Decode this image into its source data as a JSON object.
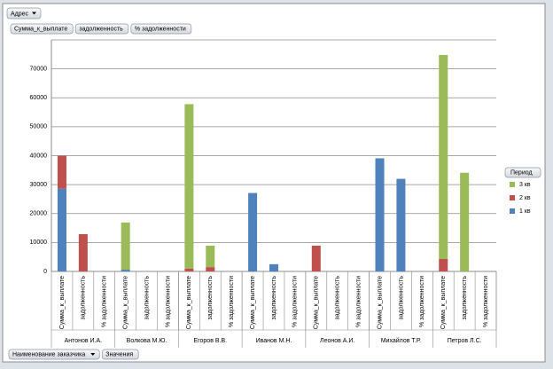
{
  "chart_data": {
    "type": "stacked_bar",
    "filter_button": "Адрес",
    "field_buttons": [
      "Сумма_к_выплате",
      "задолженность",
      "% задолженности"
    ],
    "axis_buttons": [
      "Наименование заказчика",
      "Значения"
    ],
    "legend_title": "Период",
    "legend": "right",
    "grid": true,
    "groups": [
      "Антонов И.А.",
      "Волкова М.Ю.",
      "Егоров В.В.",
      "Иванов М.Н.",
      "Леонов А.И.",
      "Михайлов Т.Р.",
      "Петров Л.С."
    ],
    "categories": [
      "Сумма_к_выплате",
      "задолженность",
      "% задолженности",
      "Сумма_к_выплате",
      "задолженность",
      "% задолженности",
      "Сумма_к_выплате",
      "задолженность",
      "% задолженности",
      "Сумма_к_выплате",
      "задолженность",
      "% задолженности",
      "Сумма_к_выплате",
      "задолженность",
      "% задолженности",
      "Сумма_к_выплате",
      "задолженность",
      "% задолженности",
      "Сумма_к_выплате",
      "задолженность",
      "% задолженности"
    ],
    "series": [
      {
        "name": "1 кв",
        "color": "#4f81bd",
        "values": [
          28600,
          0,
          0,
          600,
          0,
          0,
          0,
          0,
          0,
          27100,
          2500,
          0,
          0,
          0,
          0,
          39100,
          32000,
          0,
          0,
          0,
          0
        ]
      },
      {
        "name": "2 кв",
        "color": "#c0504d",
        "values": [
          11400,
          12900,
          0,
          0,
          0,
          0,
          1000,
          1500,
          0,
          0,
          0,
          0,
          8900,
          0,
          0,
          0,
          0,
          0,
          4300,
          0,
          0
        ]
      },
      {
        "name": "3 кв",
        "color": "#9bbb59",
        "values": [
          0,
          0,
          0,
          16300,
          0,
          0,
          56800,
          7400,
          0,
          0,
          0,
          0,
          0,
          0,
          0,
          0,
          0,
          0,
          70500,
          34100,
          0
        ]
      }
    ],
    "ylim": [
      0,
      80000
    ],
    "yticks": [
      0,
      10000,
      20000,
      30000,
      40000,
      50000,
      60000,
      70000
    ]
  }
}
